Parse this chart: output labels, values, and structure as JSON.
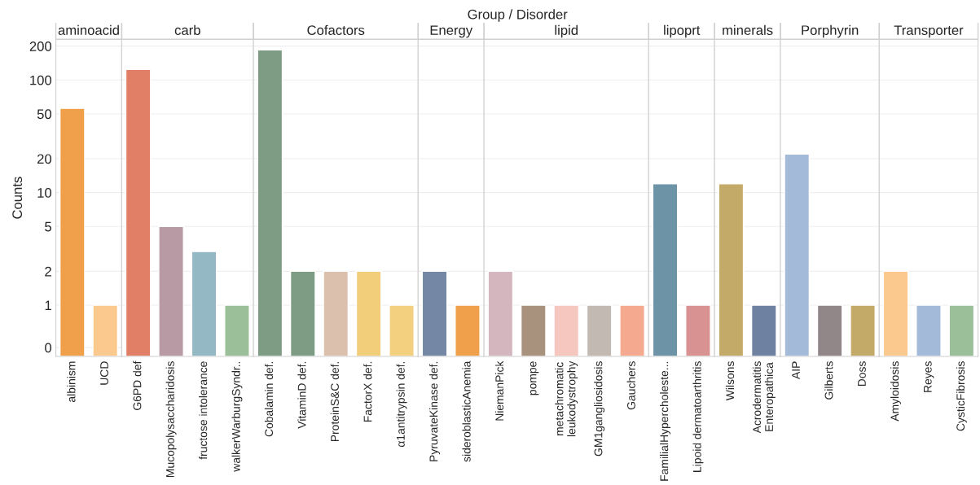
{
  "chart_data": [
    {
      "type": "bar",
      "title": "aminoacid",
      "annotations": [
        "Group / Disorder"
      ],
      "ylabel": "Counts",
      "categories": [
        "albinism",
        "UCD"
      ],
      "values": [
        56,
        1
      ],
      "colors": [
        "#f0a04b",
        "#fbc98e"
      ],
      "log": true,
      "ylim": [
        0.35,
        230
      ],
      "yticks": [
        {
          "value": 0.42,
          "label": "0"
        },
        1,
        2,
        5,
        10,
        20,
        50,
        100,
        200
      ],
      "grid": "y"
    },
    {
      "type": "bar",
      "title": "carb",
      "categories": [
        "G6PD def",
        "Mucopolysaccharidosis",
        "fructose intolerance",
        "walkerWarburgSyndr.."
      ],
      "values": [
        124,
        5,
        3,
        1
      ],
      "colors": [
        "#e07f66",
        "#b79aa3",
        "#94b8c4",
        "#9bbf99"
      ],
      "log": true,
      "ylim": [
        0.35,
        230
      ],
      "yticks": [
        1,
        2,
        5,
        10,
        20,
        50,
        100,
        200
      ],
      "grid": "y",
      "tick_labels": "x"
    },
    {
      "type": "bar",
      "title": "Cofactors",
      "categories": [
        "Cobalamin def.",
        "VitaminD def.",
        "ProteinS&C def.",
        "FactorX def.",
        "α1antitrypsin def."
      ],
      "values": [
        185,
        2,
        2,
        2,
        1
      ],
      "colors": [
        "#7e9c84",
        "#7e9c84",
        "#dbc1ad",
        "#f2ce7a",
        "#f2d080"
      ],
      "log": true,
      "ylim": [
        0.35,
        230
      ],
      "yticks": [
        1,
        2,
        5,
        10,
        20,
        50,
        100,
        200
      ],
      "grid": "y",
      "tick_labels": "x"
    },
    {
      "type": "bar",
      "title": "Energy",
      "categories": [
        "PyruvateKinase def.",
        "sideroblasticAnemia"
      ],
      "values": [
        2,
        1
      ],
      "colors": [
        "#7487a4",
        "#f0a04b"
      ],
      "log": true,
      "ylim": [
        0.35,
        230
      ],
      "yticks": [
        1,
        2,
        5,
        10,
        20,
        50,
        100,
        200
      ],
      "grid": "y",
      "tick_labels": "x"
    },
    {
      "type": "bar",
      "title": "lipid",
      "categories": [
        "NiemanPick",
        "pompe",
        "metachromatic\nleukodystrophy",
        "GM1gangliosidosis",
        "Gauchers"
      ],
      "values": [
        2,
        1,
        1,
        1,
        1
      ],
      "colors": [
        "#d4b6be",
        "#a8917d",
        "#f5c7bf",
        "#c2b9b3",
        "#f5a98f"
      ],
      "log": true,
      "ylim": [
        0.35,
        230
      ],
      "yticks": [
        1,
        2,
        5,
        10,
        20,
        50,
        100,
        200
      ],
      "grid": "y",
      "tick_labels": "x"
    },
    {
      "type": "bar",
      "title": "lipoprt",
      "categories": [
        "FamilialHypercholeste...",
        "Lipoid dermatoarthritis"
      ],
      "values": [
        12,
        1
      ],
      "colors": [
        "#6d94a6",
        "#d79291"
      ],
      "log": true,
      "ylim": [
        0.35,
        230
      ],
      "yticks": [
        1,
        2,
        5,
        10,
        20,
        50,
        100,
        200
      ],
      "grid": "y",
      "tick_labels": "x"
    },
    {
      "type": "bar",
      "title": "minerals",
      "categories": [
        "Wilsons",
        "Acrodermatitis\nEnteropathica"
      ],
      "values": [
        12,
        1
      ],
      "colors": [
        "#c4aa68",
        "#6e81a0"
      ],
      "log": true,
      "ylim": [
        0.35,
        230
      ],
      "yticks": [
        1,
        2,
        5,
        10,
        20,
        50,
        100,
        200
      ],
      "grid": "y",
      "tick_labels": "x"
    },
    {
      "type": "bar",
      "title": "Porphyrin",
      "categories": [
        "AIP",
        "Gilberts",
        "Doss"
      ],
      "values": [
        22,
        1,
        1
      ],
      "colors": [
        "#a3bbd9",
        "#918789",
        "#c4aa68"
      ],
      "log": true,
      "ylim": [
        0.35,
        230
      ],
      "yticks": [
        1,
        2,
        5,
        10,
        20,
        50,
        100,
        200
      ],
      "grid": "y",
      "tick_labels": "x"
    },
    {
      "type": "bar",
      "title": "Transporter",
      "categories": [
        "Amyloidosis",
        "Reyes",
        "CysticFibrosis"
      ],
      "values": [
        2,
        1,
        1
      ],
      "colors": [
        "#fbc98e",
        "#a3bbd9",
        "#9bbf99"
      ],
      "log": true,
      "ylim": [
        0.35,
        230
      ],
      "yticks": [
        1,
        2,
        5,
        10,
        20,
        50,
        100,
        200
      ],
      "grid": "y",
      "tick_labels": "x"
    }
  ]
}
